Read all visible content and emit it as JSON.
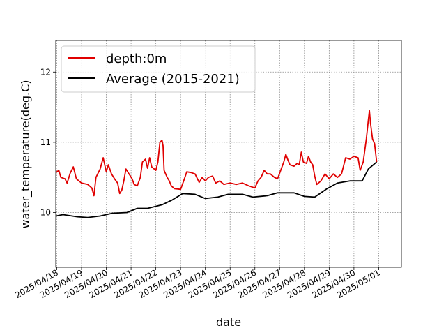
{
  "chart_data": {
    "type": "line",
    "xlabel": "date",
    "ylabel": "water_temperature(deg.C)",
    "xlim": [
      "2025-04-17T23:00",
      "2025-05-01T22:00"
    ],
    "ylim": [
      9.22,
      12.45
    ],
    "x_ticks": [
      "2025/04/18",
      "2025/04/19",
      "2025/04/20",
      "2025/04/21",
      "2025/04/22",
      "2025/04/23",
      "2025/04/24",
      "2025/04/25",
      "2025/04/26",
      "2025/04/27",
      "2025/04/28",
      "2025/04/29",
      "2025/04/30",
      "2025/05/01"
    ],
    "y_ticks": [
      10,
      11,
      12
    ],
    "grid": true,
    "legend_position": "top-left",
    "series": [
      {
        "name": "depth:0m",
        "color": "#e00000",
        "points": [
          [
            "2025-04-17T23:00",
            10.57
          ],
          [
            "2025-04-18T02:00",
            10.6
          ],
          [
            "2025-04-18T04:00",
            10.5
          ],
          [
            "2025-04-18T08:00",
            10.48
          ],
          [
            "2025-04-18T10:00",
            10.42
          ],
          [
            "2025-04-18T13:00",
            10.56
          ],
          [
            "2025-04-18T16:00",
            10.65
          ],
          [
            "2025-04-18T19:00",
            10.48
          ],
          [
            "2025-04-19T00:00",
            10.42
          ],
          [
            "2025-04-19T06:00",
            10.4
          ],
          [
            "2025-04-19T10:00",
            10.35
          ],
          [
            "2025-04-19T12:00",
            10.24
          ],
          [
            "2025-04-19T14:00",
            10.5
          ],
          [
            "2025-04-19T18:00",
            10.62
          ],
          [
            "2025-04-19T21:00",
            10.78
          ],
          [
            "2025-04-20T00:00",
            10.58
          ],
          [
            "2025-04-20T02:00",
            10.68
          ],
          [
            "2025-04-20T05:00",
            10.55
          ],
          [
            "2025-04-20T08:00",
            10.48
          ],
          [
            "2025-04-20T11:00",
            10.42
          ],
          [
            "2025-04-20T13:00",
            10.27
          ],
          [
            "2025-04-20T15:00",
            10.32
          ],
          [
            "2025-04-20T17:00",
            10.45
          ],
          [
            "2025-04-20T19:00",
            10.62
          ],
          [
            "2025-04-20T22:00",
            10.55
          ],
          [
            "2025-04-21T01:00",
            10.48
          ],
          [
            "2025-04-21T03:00",
            10.4
          ],
          [
            "2025-04-21T06:00",
            10.38
          ],
          [
            "2025-04-21T09:00",
            10.5
          ],
          [
            "2025-04-21T11:00",
            10.72
          ],
          [
            "2025-04-21T14:00",
            10.76
          ],
          [
            "2025-04-21T16:00",
            10.63
          ],
          [
            "2025-04-21T18:00",
            10.78
          ],
          [
            "2025-04-21T20:00",
            10.65
          ],
          [
            "2025-04-22T00:00",
            10.6
          ],
          [
            "2025-04-22T02:00",
            10.72
          ],
          [
            "2025-04-22T04:00",
            11.0
          ],
          [
            "2025-04-22T06:00",
            11.03
          ],
          [
            "2025-04-22T07:00",
            10.95
          ],
          [
            "2025-04-22T08:00",
            10.6
          ],
          [
            "2025-04-22T11:00",
            10.5
          ],
          [
            "2025-04-22T13:00",
            10.45
          ],
          [
            "2025-04-22T15:00",
            10.38
          ],
          [
            "2025-04-22T18:00",
            10.34
          ],
          [
            "2025-04-23T00:00",
            10.33
          ],
          [
            "2025-04-23T03:00",
            10.45
          ],
          [
            "2025-04-23T06:00",
            10.58
          ],
          [
            "2025-04-23T10:00",
            10.57
          ],
          [
            "2025-04-23T14:00",
            10.55
          ],
          [
            "2025-04-23T18:00",
            10.43
          ],
          [
            "2025-04-23T21:00",
            10.5
          ],
          [
            "2025-04-24T00:00",
            10.45
          ],
          [
            "2025-04-24T03:00",
            10.5
          ],
          [
            "2025-04-24T07:00",
            10.52
          ],
          [
            "2025-04-24T10:00",
            10.42
          ],
          [
            "2025-04-24T14:00",
            10.45
          ],
          [
            "2025-04-24T18:00",
            10.4
          ],
          [
            "2025-04-25T00:00",
            10.42
          ],
          [
            "2025-04-25T06:00",
            10.4
          ],
          [
            "2025-04-25T12:00",
            10.42
          ],
          [
            "2025-04-25T18:00",
            10.38
          ],
          [
            "2025-04-26T00:00",
            10.35
          ],
          [
            "2025-04-26T03:00",
            10.45
          ],
          [
            "2025-04-26T06:00",
            10.5
          ],
          [
            "2025-04-26T09:00",
            10.6
          ],
          [
            "2025-04-26T12:00",
            10.55
          ],
          [
            "2025-04-26T15:00",
            10.55
          ],
          [
            "2025-04-26T19:00",
            10.5
          ],
          [
            "2025-04-26T22:00",
            10.48
          ],
          [
            "2025-04-27T01:00",
            10.6
          ],
          [
            "2025-04-27T04:00",
            10.72
          ],
          [
            "2025-04-27T06:00",
            10.83
          ],
          [
            "2025-04-27T08:00",
            10.75
          ],
          [
            "2025-04-27T10:00",
            10.68
          ],
          [
            "2025-04-27T14:00",
            10.66
          ],
          [
            "2025-04-27T17:00",
            10.7
          ],
          [
            "2025-04-27T19:00",
            10.68
          ],
          [
            "2025-04-27T21:00",
            10.86
          ],
          [
            "2025-04-27T23:00",
            10.72
          ],
          [
            "2025-04-28T02:00",
            10.7
          ],
          [
            "2025-04-28T04:00",
            10.8
          ],
          [
            "2025-04-28T06:00",
            10.72
          ],
          [
            "2025-04-28T08:00",
            10.68
          ],
          [
            "2025-04-28T10:00",
            10.52
          ],
          [
            "2025-04-28T12:00",
            10.4
          ],
          [
            "2025-04-28T16:00",
            10.45
          ],
          [
            "2025-04-28T20:00",
            10.55
          ],
          [
            "2025-04-29T00:00",
            10.48
          ],
          [
            "2025-04-29T04:00",
            10.55
          ],
          [
            "2025-04-29T08:00",
            10.5
          ],
          [
            "2025-04-29T12:00",
            10.55
          ],
          [
            "2025-04-29T16:00",
            10.78
          ],
          [
            "2025-04-29T20:00",
            10.76
          ],
          [
            "2025-04-30T00:00",
            10.8
          ],
          [
            "2025-04-30T04:00",
            10.78
          ],
          [
            "2025-04-30T06:00",
            10.6
          ],
          [
            "2025-04-30T09:00",
            10.72
          ],
          [
            "2025-04-30T12:00",
            11.05
          ],
          [
            "2025-04-30T14:00",
            11.32
          ],
          [
            "2025-04-30T15:00",
            11.45
          ],
          [
            "2025-04-30T16:00",
            11.28
          ],
          [
            "2025-04-30T18:00",
            11.05
          ],
          [
            "2025-04-30T20:00",
            10.98
          ],
          [
            "2025-04-30T22:00",
            10.72
          ]
        ]
      },
      {
        "name": "Average (2015-2021)",
        "color": "#000000",
        "points": [
          [
            "2025-04-17T23:00",
            9.95
          ],
          [
            "2025-04-18T06:00",
            9.97
          ],
          [
            "2025-04-18T20:00",
            9.94
          ],
          [
            "2025-04-19T06:00",
            9.93
          ],
          [
            "2025-04-19T18:00",
            9.95
          ],
          [
            "2025-04-20T06:00",
            9.99
          ],
          [
            "2025-04-20T20:00",
            10.0
          ],
          [
            "2025-04-21T06:00",
            10.06
          ],
          [
            "2025-04-21T16:00",
            10.06
          ],
          [
            "2025-04-22T06:00",
            10.11
          ],
          [
            "2025-04-22T16:00",
            10.18
          ],
          [
            "2025-04-23T02:00",
            10.27
          ],
          [
            "2025-04-23T14:00",
            10.26
          ],
          [
            "2025-04-24T00:00",
            10.2
          ],
          [
            "2025-04-24T12:00",
            10.22
          ],
          [
            "2025-04-24T22:00",
            10.26
          ],
          [
            "2025-04-25T12:00",
            10.26
          ],
          [
            "2025-04-25T22:00",
            10.22
          ],
          [
            "2025-04-26T12:00",
            10.24
          ],
          [
            "2025-04-26T22:00",
            10.28
          ],
          [
            "2025-04-27T14:00",
            10.28
          ],
          [
            "2025-04-28T00:00",
            10.23
          ],
          [
            "2025-04-28T10:00",
            10.22
          ],
          [
            "2025-04-28T22:00",
            10.34
          ],
          [
            "2025-04-29T08:00",
            10.42
          ],
          [
            "2025-04-29T20:00",
            10.45
          ],
          [
            "2025-04-30T08:00",
            10.45
          ],
          [
            "2025-04-30T14:00",
            10.62
          ],
          [
            "2025-04-30T22:00",
            10.72
          ]
        ]
      }
    ]
  }
}
